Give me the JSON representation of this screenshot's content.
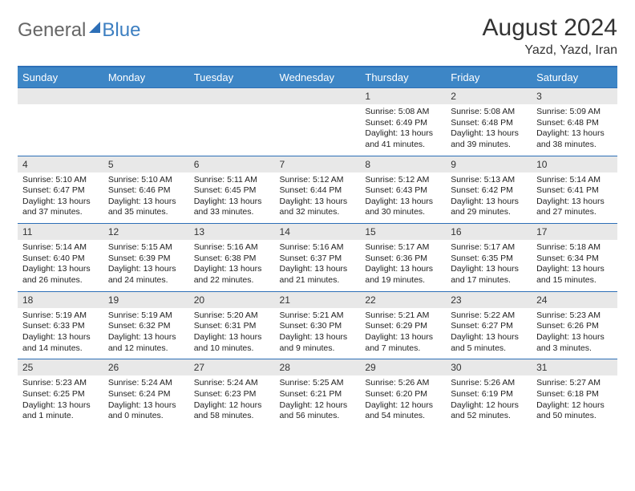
{
  "logo": {
    "part1": "General",
    "part2": "Blue"
  },
  "title": "August 2024",
  "location": "Yazd, Yazd, Iran",
  "dayNames": [
    "Sunday",
    "Monday",
    "Tuesday",
    "Wednesday",
    "Thursday",
    "Friday",
    "Saturday"
  ],
  "colors": {
    "header_bg": "#3d86c6",
    "border": "#2d6fb7",
    "daynum_bg": "#e8e8e8",
    "text": "#333333"
  },
  "weeks": [
    [
      null,
      null,
      null,
      null,
      {
        "n": "1",
        "sr": "5:08 AM",
        "ss": "6:49 PM",
        "dl": "13 hours and 41 minutes."
      },
      {
        "n": "2",
        "sr": "5:08 AM",
        "ss": "6:48 PM",
        "dl": "13 hours and 39 minutes."
      },
      {
        "n": "3",
        "sr": "5:09 AM",
        "ss": "6:48 PM",
        "dl": "13 hours and 38 minutes."
      }
    ],
    [
      {
        "n": "4",
        "sr": "5:10 AM",
        "ss": "6:47 PM",
        "dl": "13 hours and 37 minutes."
      },
      {
        "n": "5",
        "sr": "5:10 AM",
        "ss": "6:46 PM",
        "dl": "13 hours and 35 minutes."
      },
      {
        "n": "6",
        "sr": "5:11 AM",
        "ss": "6:45 PM",
        "dl": "13 hours and 33 minutes."
      },
      {
        "n": "7",
        "sr": "5:12 AM",
        "ss": "6:44 PM",
        "dl": "13 hours and 32 minutes."
      },
      {
        "n": "8",
        "sr": "5:12 AM",
        "ss": "6:43 PM",
        "dl": "13 hours and 30 minutes."
      },
      {
        "n": "9",
        "sr": "5:13 AM",
        "ss": "6:42 PM",
        "dl": "13 hours and 29 minutes."
      },
      {
        "n": "10",
        "sr": "5:14 AM",
        "ss": "6:41 PM",
        "dl": "13 hours and 27 minutes."
      }
    ],
    [
      {
        "n": "11",
        "sr": "5:14 AM",
        "ss": "6:40 PM",
        "dl": "13 hours and 26 minutes."
      },
      {
        "n": "12",
        "sr": "5:15 AM",
        "ss": "6:39 PM",
        "dl": "13 hours and 24 minutes."
      },
      {
        "n": "13",
        "sr": "5:16 AM",
        "ss": "6:38 PM",
        "dl": "13 hours and 22 minutes."
      },
      {
        "n": "14",
        "sr": "5:16 AM",
        "ss": "6:37 PM",
        "dl": "13 hours and 21 minutes."
      },
      {
        "n": "15",
        "sr": "5:17 AM",
        "ss": "6:36 PM",
        "dl": "13 hours and 19 minutes."
      },
      {
        "n": "16",
        "sr": "5:17 AM",
        "ss": "6:35 PM",
        "dl": "13 hours and 17 minutes."
      },
      {
        "n": "17",
        "sr": "5:18 AM",
        "ss": "6:34 PM",
        "dl": "13 hours and 15 minutes."
      }
    ],
    [
      {
        "n": "18",
        "sr": "5:19 AM",
        "ss": "6:33 PM",
        "dl": "13 hours and 14 minutes."
      },
      {
        "n": "19",
        "sr": "5:19 AM",
        "ss": "6:32 PM",
        "dl": "13 hours and 12 minutes."
      },
      {
        "n": "20",
        "sr": "5:20 AM",
        "ss": "6:31 PM",
        "dl": "13 hours and 10 minutes."
      },
      {
        "n": "21",
        "sr": "5:21 AM",
        "ss": "6:30 PM",
        "dl": "13 hours and 9 minutes."
      },
      {
        "n": "22",
        "sr": "5:21 AM",
        "ss": "6:29 PM",
        "dl": "13 hours and 7 minutes."
      },
      {
        "n": "23",
        "sr": "5:22 AM",
        "ss": "6:27 PM",
        "dl": "13 hours and 5 minutes."
      },
      {
        "n": "24",
        "sr": "5:23 AM",
        "ss": "6:26 PM",
        "dl": "13 hours and 3 minutes."
      }
    ],
    [
      {
        "n": "25",
        "sr": "5:23 AM",
        "ss": "6:25 PM",
        "dl": "13 hours and 1 minute."
      },
      {
        "n": "26",
        "sr": "5:24 AM",
        "ss": "6:24 PM",
        "dl": "13 hours and 0 minutes."
      },
      {
        "n": "27",
        "sr": "5:24 AM",
        "ss": "6:23 PM",
        "dl": "12 hours and 58 minutes."
      },
      {
        "n": "28",
        "sr": "5:25 AM",
        "ss": "6:21 PM",
        "dl": "12 hours and 56 minutes."
      },
      {
        "n": "29",
        "sr": "5:26 AM",
        "ss": "6:20 PM",
        "dl": "12 hours and 54 minutes."
      },
      {
        "n": "30",
        "sr": "5:26 AM",
        "ss": "6:19 PM",
        "dl": "12 hours and 52 minutes."
      },
      {
        "n": "31",
        "sr": "5:27 AM",
        "ss": "6:18 PM",
        "dl": "12 hours and 50 minutes."
      }
    ]
  ],
  "labels": {
    "sunrise": "Sunrise:",
    "sunset": "Sunset:",
    "daylight": "Daylight:"
  }
}
